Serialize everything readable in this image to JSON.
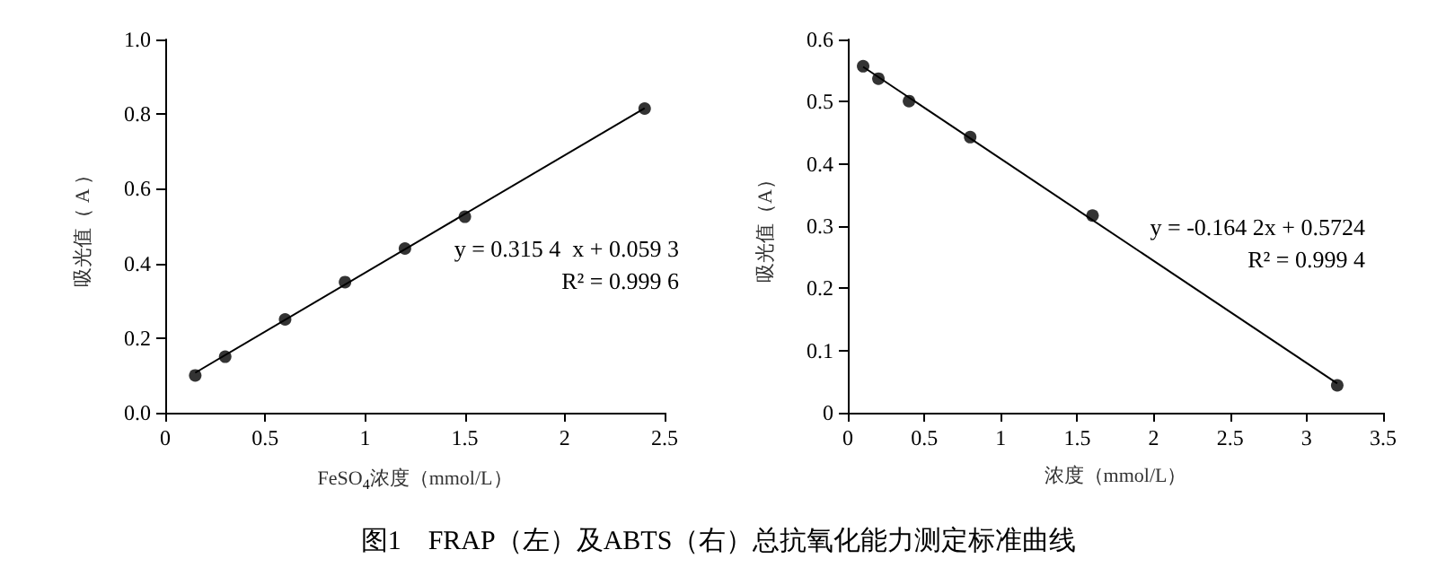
{
  "chart_data": [
    {
      "type": "scatter",
      "xlabel": "FeSO$_{4}$浓度（mmol/L）",
      "ylabel": "吸光值（ A ）",
      "xlim": [
        0,
        2.5
      ],
      "xticks": [
        0,
        0.5,
        1,
        1.5,
        2,
        2.5
      ],
      "ylim": [
        0,
        1.0
      ],
      "yticks": [
        {
          "value": 0,
          "label": "0.0"
        },
        0.2,
        0.4,
        0.6,
        0.8,
        {
          "value": 1,
          "label": "1.0"
        }
      ],
      "grid": false,
      "marker": "circle",
      "annotations": [
        "y = 0.315 4  x + 0.059 3",
        "R² = 0.999 6",
        "图1　FRAP（左）及ABTS（右）总抗氧化能力测定标准曲线"
      ],
      "series": [
        {
          "color": "#000000",
          "x": [
            0.15,
            0.3,
            0.6,
            0.9,
            1.2,
            1.5,
            2.4
          ],
          "values": [
            0.1,
            0.15,
            0.25,
            0.35,
            0.44,
            0.525,
            0.815
          ]
        },
        {
          "type": "line",
          "color": "#000000",
          "marker": "none",
          "x": [
            0.15,
            2.4
          ],
          "values": [
            0.107,
            0.816
          ]
        }
      ]
    },
    {
      "type": "scatter",
      "xlabel": "浓度（mmol/L）",
      "ylabel": "吸光值（A）",
      "xlim": [
        0,
        3.5
      ],
      "xticks": [
        0,
        0.5,
        1,
        1.5,
        2,
        2.5,
        3,
        3.5
      ],
      "ylim": [
        0,
        0.6
      ],
      "yticks": [
        0,
        0.1,
        0.2,
        0.3,
        0.4,
        0.5,
        0.6
      ],
      "grid": false,
      "marker": "circle",
      "annotations": [
        "y = -0.164 2x + 0.5724",
        "R² = 0.999 4"
      ],
      "series": [
        {
          "color": "#000000",
          "x": [
            0.1,
            0.2,
            0.4,
            0.8,
            1.6,
            3.2
          ],
          "values": [
            0.557,
            0.537,
            0.501,
            0.443,
            0.317,
            0.044
          ]
        },
        {
          "type": "line",
          "color": "#000000",
          "marker": "none",
          "x": [
            0.1,
            3.2
          ],
          "values": [
            0.556,
            0.047
          ]
        }
      ]
    }
  ]
}
